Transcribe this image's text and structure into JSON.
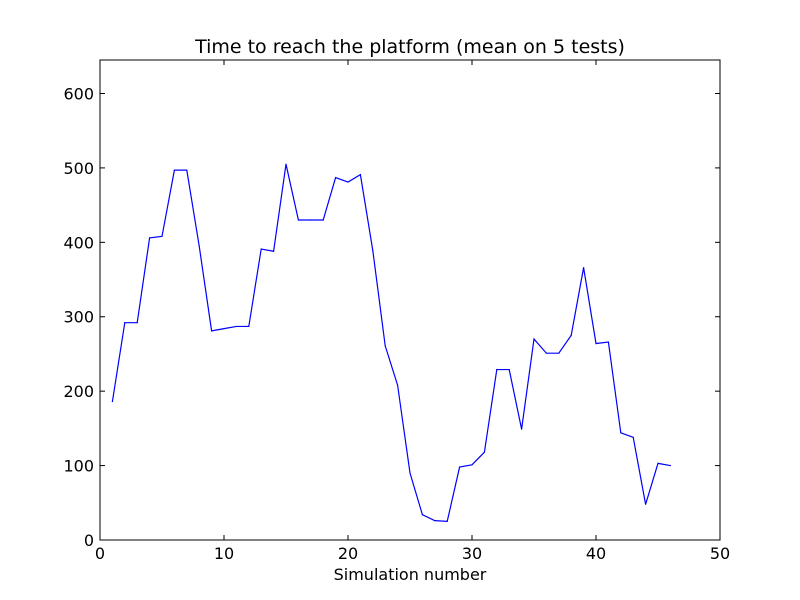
{
  "chart_data": {
    "type": "line",
    "title": "Time to reach the platform (mean on 5 tests)",
    "xlabel": "Simulation number",
    "ylabel": "",
    "xlim": [
      0,
      50
    ],
    "ylim": [
      0,
      645
    ],
    "xticks": [
      0,
      10,
      20,
      30,
      40,
      50
    ],
    "yticks": [
      0,
      100,
      200,
      300,
      400,
      500,
      600
    ],
    "grid": false,
    "series": [
      {
        "color": "#0000ff",
        "x": [
          1,
          2,
          3,
          4,
          5,
          6,
          7,
          8,
          9,
          10,
          11,
          12,
          13,
          14,
          15,
          16,
          17,
          18,
          19,
          20,
          21,
          22,
          23,
          24,
          25,
          26,
          27,
          28,
          29,
          30,
          31,
          32,
          33,
          34,
          35,
          36,
          37,
          38,
          39,
          40,
          41,
          42,
          43,
          44,
          45,
          46
        ],
        "y": [
          186,
          292,
          292,
          406,
          408,
          497,
          497,
          395,
          281,
          284,
          287,
          287,
          391,
          388,
          505,
          430,
          430,
          430,
          487,
          481,
          491,
          389,
          261,
          208,
          90,
          34,
          26,
          25,
          98,
          101,
          118,
          229,
          229,
          149,
          270,
          251,
          251,
          275,
          366,
          264,
          266,
          144,
          138,
          48,
          103,
          100
        ]
      }
    ]
  }
}
